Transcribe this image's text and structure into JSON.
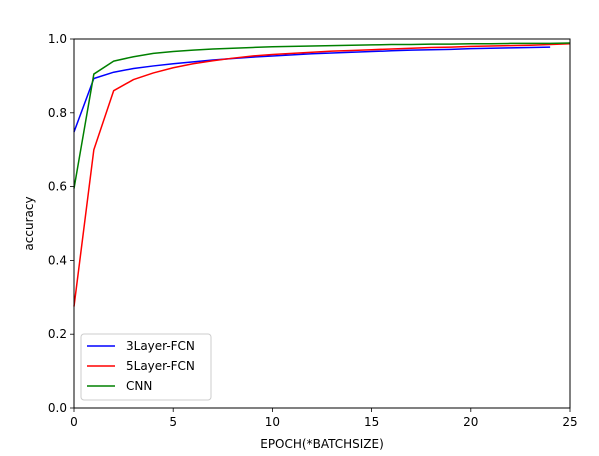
{
  "chart_data": {
    "type": "line",
    "title": "",
    "xlabel": "EPOCH(*BATCHSIZE)",
    "ylabel": "accuracy",
    "xlim": [
      0,
      25
    ],
    "ylim": [
      0.0,
      1.0
    ],
    "xticks": [
      0,
      5,
      10,
      15,
      20,
      25
    ],
    "yticks": [
      0.0,
      0.2,
      0.4,
      0.6,
      0.8,
      1.0
    ],
    "xtick_labels": [
      "0",
      "5",
      "10",
      "15",
      "20",
      "25"
    ],
    "ytick_labels": [
      "0.0",
      "0.2",
      "0.4",
      "0.6",
      "0.8",
      "1.0"
    ],
    "grid": false,
    "legend_position": "lower-left",
    "series": [
      {
        "name": "3Layer-FCN",
        "color": "#0000ff",
        "x": [
          0,
          1,
          2,
          3,
          4,
          5,
          6,
          7,
          8,
          9,
          10,
          11,
          12,
          13,
          14,
          15,
          16,
          17,
          18,
          19,
          20,
          21,
          22,
          23,
          24
        ],
        "values": [
          0.748,
          0.893,
          0.91,
          0.92,
          0.927,
          0.933,
          0.938,
          0.943,
          0.947,
          0.951,
          0.954,
          0.957,
          0.96,
          0.962,
          0.964,
          0.966,
          0.968,
          0.97,
          0.971,
          0.972,
          0.974,
          0.975,
          0.976,
          0.977,
          0.978
        ]
      },
      {
        "name": "5Layer-FCN",
        "color": "#ff0000",
        "x": [
          0,
          1,
          2,
          3,
          4,
          5,
          6,
          7,
          8,
          9,
          10,
          11,
          12,
          13,
          14,
          15,
          16,
          17,
          18,
          19,
          20,
          21,
          22,
          23,
          24,
          25
        ],
        "values": [
          0.275,
          0.7,
          0.86,
          0.89,
          0.908,
          0.922,
          0.933,
          0.941,
          0.948,
          0.954,
          0.958,
          0.961,
          0.964,
          0.967,
          0.969,
          0.971,
          0.973,
          0.975,
          0.977,
          0.978,
          0.98,
          0.981,
          0.982,
          0.983,
          0.985,
          0.987
        ]
      },
      {
        "name": "CNN",
        "color": "#008000",
        "x": [
          0,
          1,
          2,
          3,
          4,
          5,
          6,
          7,
          8,
          9,
          10,
          11,
          12,
          13,
          14,
          15,
          16,
          17,
          18,
          19,
          20,
          21,
          22,
          23,
          24,
          25
        ],
        "values": [
          0.595,
          0.905,
          0.94,
          0.952,
          0.961,
          0.966,
          0.97,
          0.973,
          0.975,
          0.977,
          0.979,
          0.98,
          0.981,
          0.982,
          0.983,
          0.984,
          0.985,
          0.985,
          0.986,
          0.986,
          0.987,
          0.987,
          0.988,
          0.988,
          0.988,
          0.989
        ]
      }
    ]
  }
}
